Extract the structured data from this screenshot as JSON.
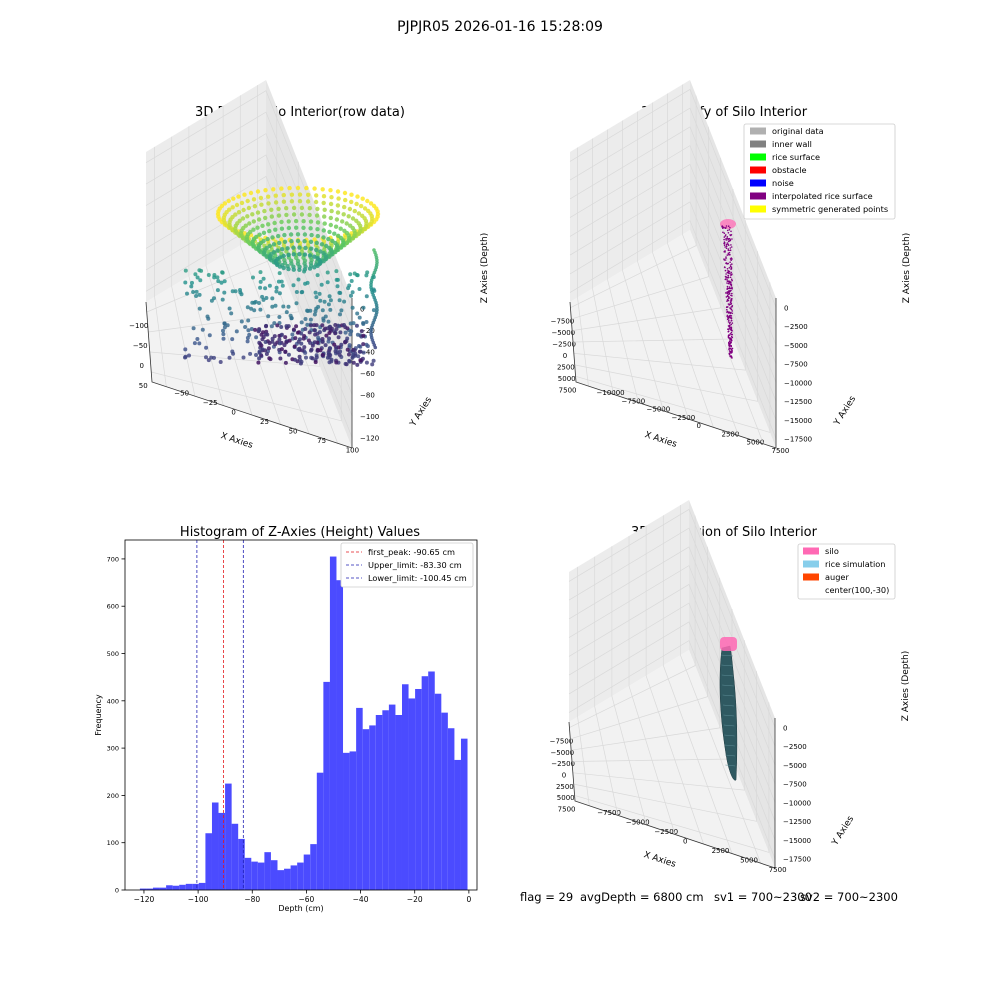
{
  "figure": {
    "suptitle": "PJPJR05 2026-01-16 15:28:09",
    "footer": {
      "flag": "flag = 29",
      "avg_depth": "avgDepth = 6800 cm",
      "sv1": "sv1 = 700~2300",
      "sv2": "sv2 = 700~2300"
    }
  },
  "colors": {
    "pane": "#f2f2f2",
    "pane_grid": "#d9d9d9",
    "hist_bar": "#4b4bff",
    "first_peak": "#e41a1c",
    "limit": "#1f1fb4",
    "silo": "#ff69b4",
    "rice_simulation": "#87ceeb",
    "auger": "#ff4500",
    "rice_fill": "#2f5961",
    "interpolated": "#800080"
  },
  "chart_data": [
    {
      "type": "scatter",
      "projection": "3d",
      "title": "3D Plot of Silo Interior(row data)",
      "xlabel": "X Axies",
      "ylabel": "Y Axies",
      "zlabel": "Z Axies (Depth)",
      "x_ticks": [
        "−100",
        "−50",
        "0",
        "50"
      ],
      "y_ticks": [
        "−50",
        "−25",
        "0",
        "25",
        "50",
        "75",
        "100"
      ],
      "z_ticks": [
        "0",
        "−20",
        "−40",
        "−60",
        "−80",
        "−100",
        "−120"
      ],
      "xlim": [
        -130,
        80
      ],
      "ylim": [
        -60,
        110
      ],
      "zlim": [
        -130,
        5
      ],
      "colormap": "viridis",
      "description_series": [
        {
          "role": "funnel-surface",
          "z_range": [
            -60,
            0
          ]
        },
        {
          "role": "scattered-noise",
          "z_range": [
            -130,
            -60
          ]
        }
      ]
    },
    {
      "type": "scatter",
      "projection": "3d",
      "title": "3D classify of Silo Interior",
      "xlabel": "X Axies",
      "ylabel": "Y Axies",
      "zlabel": "Z Axies (Depth)",
      "x_ticks": [
        "−7500",
        "−5000",
        "−2500",
        "0",
        "2500",
        "5000",
        "7500"
      ],
      "y_ticks": [
        "−10000",
        "−7500",
        "−5000",
        "−2500",
        "0",
        "2500",
        "5000",
        "7500"
      ],
      "z_ticks": [
        "0",
        "−2500",
        "−5000",
        "−7500",
        "−10000",
        "−12500",
        "−15000",
        "−17500"
      ],
      "legend": [
        {
          "label": "original data",
          "color": "#b0b0b0"
        },
        {
          "label": "inner wall",
          "color": "#808080"
        },
        {
          "label": "rice surface",
          "color": "#00ff00"
        },
        {
          "label": "obstacle",
          "color": "#ff0000"
        },
        {
          "label": "noise",
          "color": "#0000ff"
        },
        {
          "label": "interpolated rice surface",
          "color": "#800080"
        },
        {
          "label": "symmetric generated points",
          "color": "#ffff00"
        }
      ],
      "legend_loc": "upper right"
    },
    {
      "type": "bar",
      "title": "Histogram of Z-Axies (Height) Values",
      "xlabel": "Depth (cm)",
      "ylabel": "Frequency",
      "x_ticks": [
        -120,
        -100,
        -80,
        -60,
        -40,
        -20,
        0
      ],
      "y_ticks": [
        0,
        100,
        200,
        300,
        400,
        500,
        600,
        700
      ],
      "xlim": [
        -127,
        3
      ],
      "ylim": [
        0,
        740
      ],
      "bin_edges_start": -121.5,
      "bin_width": 2.42,
      "values": [
        3,
        3,
        5,
        5,
        10,
        9,
        11,
        13,
        13,
        15,
        120,
        185,
        163,
        225,
        140,
        108,
        68,
        60,
        58,
        80,
        63,
        42,
        45,
        52,
        58,
        75,
        97,
        248,
        440,
        705,
        655,
        290,
        293,
        385,
        340,
        348,
        370,
        380,
        392,
        370,
        435,
        405,
        425,
        452,
        462,
        415,
        375,
        342,
        275,
        320
      ],
      "vlines": [
        {
          "label": "first_peak: -90.65 cm",
          "x": -90.65,
          "style": "first_peak"
        },
        {
          "label": "Upper_limit: -83.30 cm",
          "x": -83.3,
          "style": "limit"
        },
        {
          "label": "Lower_limit: -100.45 cm",
          "x": -100.45,
          "style": "limit"
        }
      ],
      "legend_loc": "upper right"
    },
    {
      "type": "surface",
      "projection": "3d",
      "title": "3D simulation of Silo Interior",
      "xlabel": "X Axies",
      "ylabel": "Y Axies",
      "zlabel": "Z Axies (Depth)",
      "x_ticks": [
        "−7500",
        "−5000",
        "−2500",
        "0",
        "2500",
        "5000",
        "7500"
      ],
      "y_ticks": [
        "−7500",
        "−5000",
        "−2500",
        "0",
        "2500",
        "5000",
        "7500"
      ],
      "z_ticks": [
        "0",
        "−2500",
        "−5000",
        "−7500",
        "−10000",
        "−12500",
        "−15000",
        "−17500"
      ],
      "legend": [
        {
          "label": "silo",
          "color": "#ff69b4"
        },
        {
          "label": "rice simulation",
          "color": "#87ceeb"
        },
        {
          "label": "auger",
          "color": "#ff4500"
        },
        {
          "label": "center(100,-30)",
          "color": ""
        }
      ],
      "legend_loc": "upper right"
    }
  ]
}
